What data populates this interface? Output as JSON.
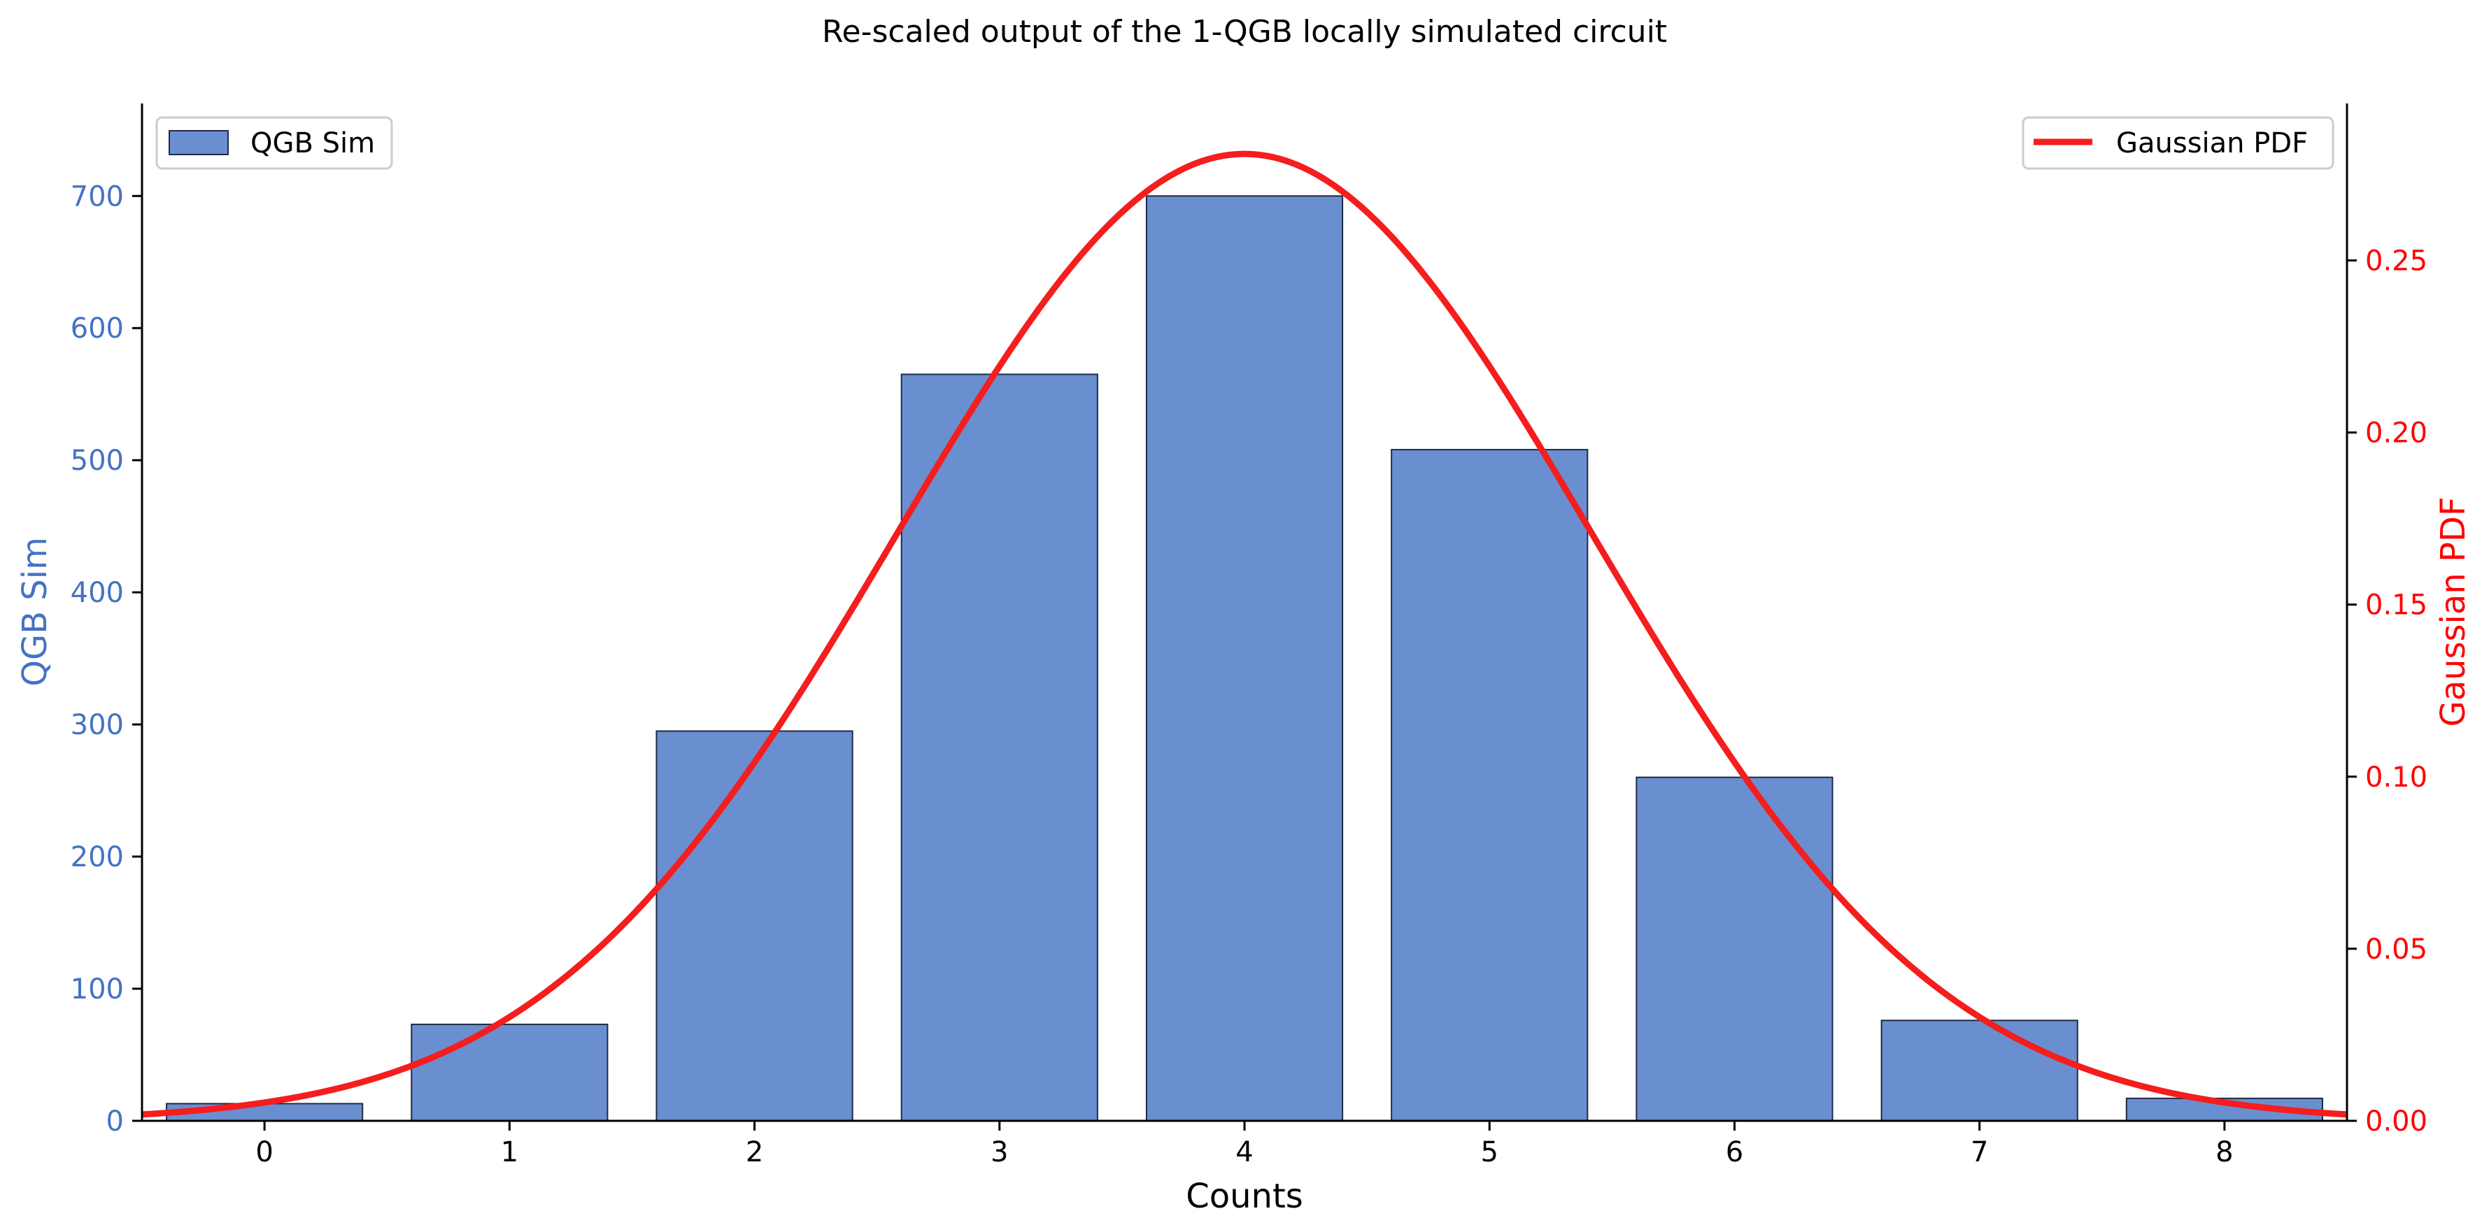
{
  "chart_data": {
    "type": "bar",
    "title": "Re-scaled output of the 1-QGB locally simulated circuit",
    "xlabel": "Counts",
    "ylabel": "QGB Sim",
    "y2label": "Gaussian PDF",
    "categories": [
      "0",
      "1",
      "2",
      "3",
      "4",
      "5",
      "6",
      "7",
      "8"
    ],
    "xlim": [
      -0.5,
      8.5
    ],
    "ylim": [
      0,
      770
    ],
    "y2lim": [
      0,
      0.2956
    ],
    "yticks": [
      0,
      100,
      200,
      300,
      400,
      500,
      600,
      700
    ],
    "y2ticks": [
      "0.00",
      "0.05",
      "0.10",
      "0.15",
      "0.20",
      "0.25"
    ],
    "grid": false,
    "series": [
      {
        "name": "QGB Sim",
        "type": "bar",
        "axis": "left",
        "color": "#6a8fd0",
        "values": [
          13,
          73,
          295,
          565,
          700,
          508,
          260,
          76,
          17
        ]
      },
      {
        "name": "Gaussian PDF",
        "type": "line",
        "axis": "right",
        "color": "#f51d1d",
        "distribution": {
          "mean": 4.0,
          "std": 1.42
        }
      }
    ],
    "legends": [
      {
        "placement": "top-left",
        "entries": [
          "QGB Sim"
        ]
      },
      {
        "placement": "top-right",
        "entries": [
          "Gaussian PDF"
        ]
      }
    ],
    "colors": {
      "left_axis": "#4472c4",
      "right_axis": "#ff0000",
      "bar_edge": "#1f2a44"
    }
  }
}
